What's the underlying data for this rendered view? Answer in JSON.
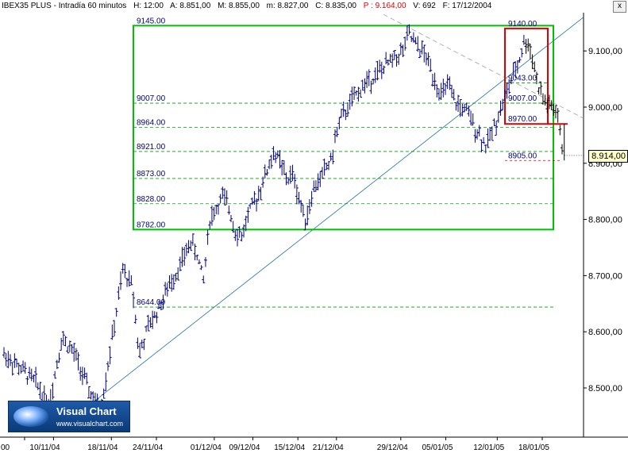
{
  "header": {
    "title": "IBEX35 PLUS - Intradía 60 minutos",
    "hour": "H: 12:00",
    "open": "A: 8.851,00",
    "high": "M: 8.855,00",
    "low": "m: 8.827,00",
    "close": "C: 8.835,00",
    "period": "P : 9.164,00",
    "volume": "V: 692",
    "date": "F: 17/12/2004"
  },
  "close_button": {
    "label": "x"
  },
  "logo": {
    "name": "Visual Chart",
    "url": "www.visualchart.com"
  },
  "current_price": "8.914,00",
  "colors": {
    "bars": "#000080",
    "green_box": "#00c000",
    "green_dashed": "#00a000",
    "red_box": "#e00000",
    "trendline": "#1f6fa8",
    "gray_dashed": "#a0a0a0",
    "level_text": "#000080"
  },
  "chart_data": {
    "type": "bar",
    "title": "IBEX35 PLUS - Intradía 60 minutos",
    "y_ticks": [
      "8.500,00",
      "8.600,00",
      "8.700,00",
      "8.800,00",
      "8.900,00",
      "9.000,00",
      "9.100,00"
    ],
    "ylim": [
      8420,
      9175
    ],
    "x_ticks": [
      "00",
      "10/11/04",
      "18/11/04",
      "24/11/04",
      "01/12/04",
      "09/12/04",
      "15/12/04",
      "21/12/04",
      "29/12/04",
      "05/01/05",
      "12/01/05",
      "18/01/05"
    ],
    "levels_left": [
      "9145.00",
      "9007.00",
      "8964.00",
      "8921.00",
      "8873.00",
      "8828.00",
      "8782.00",
      "8644.00"
    ],
    "levels_right": [
      "9140.00",
      "9043.00",
      "9007.00",
      "8970.00",
      "8905.00"
    ],
    "level_values_left": [
      9145,
      9007,
      8964,
      8921,
      8873,
      8828,
      8782,
      8644
    ],
    "level_values_right": [
      9140,
      9043,
      9007,
      8970,
      8905
    ],
    "last_price": 8914,
    "price_path": [
      [
        0,
        8560
      ],
      [
        3,
        8530
      ],
      [
        5,
        8510
      ],
      [
        7,
        8470
      ],
      [
        9,
        8590
      ],
      [
        11,
        8560
      ],
      [
        13,
        8500
      ],
      [
        15,
        8460
      ],
      [
        17,
        8600
      ],
      [
        18.5,
        8710
      ],
      [
        20,
        8680
      ],
      [
        21,
        8560
      ],
      [
        22.5,
        8610
      ],
      [
        24,
        8640
      ],
      [
        26,
        8690
      ],
      [
        27.5,
        8720
      ],
      [
        29,
        8760
      ],
      [
        30,
        8740
      ],
      [
        31,
        8690
      ],
      [
        32,
        8800
      ],
      [
        34,
        8840
      ],
      [
        35,
        8820
      ],
      [
        36,
        8780
      ],
      [
        37,
        8770
      ],
      [
        38,
        8810
      ],
      [
        39,
        8830
      ],
      [
        40,
        8860
      ],
      [
        42,
        8920
      ],
      [
        43,
        8900
      ],
      [
        44,
        8870
      ],
      [
        45,
        8880
      ],
      [
        46,
        8830
      ],
      [
        47,
        8800
      ],
      [
        48,
        8850
      ],
      [
        50,
        8890
      ],
      [
        51,
        8910
      ],
      [
        52,
        8970
      ],
      [
        54,
        9010
      ],
      [
        56,
        9040
      ],
      [
        58,
        9060
      ],
      [
        60,
        9080
      ],
      [
        62,
        9100
      ],
      [
        63,
        9130
      ],
      [
        64,
        9110
      ],
      [
        65,
        9100
      ],
      [
        66,
        9080
      ],
      [
        67,
        9050
      ],
      [
        68,
        9020
      ],
      [
        69,
        9040
      ],
      [
        70,
        9010
      ],
      [
        71,
        9000
      ],
      [
        72,
        8990
      ],
      [
        73,
        8970
      ],
      [
        74,
        8950
      ],
      [
        75,
        8930
      ],
      [
        76,
        8960
      ],
      [
        77,
        8990
      ],
      [
        78,
        9020
      ],
      [
        79,
        9050
      ],
      [
        80,
        9080
      ],
      [
        81,
        9120
      ],
      [
        82,
        9100
      ],
      [
        83,
        9040
      ],
      [
        84,
        9010
      ],
      [
        85,
        9000
      ],
      [
        86,
        8990
      ],
      [
        87,
        8910
      ]
    ]
  }
}
